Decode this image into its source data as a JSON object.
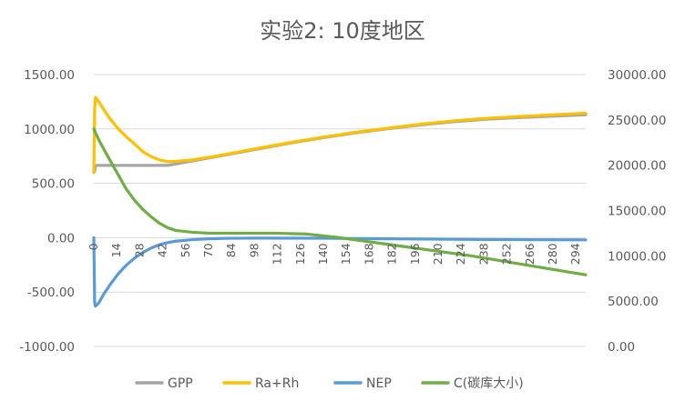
{
  "chart_data": {
    "type": "line",
    "title": "实验2: 10度地区",
    "xlabel": "",
    "ylabel": "",
    "x_ticks": [
      "0",
      "14",
      "28",
      "42",
      "56",
      "70",
      "84",
      "98",
      "112",
      "126",
      "140",
      "154",
      "168",
      "182",
      "196",
      "210",
      "224",
      "238",
      "252",
      "266",
      "280",
      "294"
    ],
    "xlim": [
      0,
      300
    ],
    "ylim_left": [
      -1000,
      1500
    ],
    "ylim_right": [
      0,
      30000
    ],
    "y_ticks_left": [
      "1500.00",
      "1000.00",
      "500.00",
      "0.00",
      "-500.00",
      "-1000.00"
    ],
    "y_ticks_right": [
      "30000.00",
      "25000.00",
      "20000.00",
      "15000.00",
      "10000.00",
      "5000.00",
      "0.00"
    ],
    "grid": "horizontal",
    "legend_position": "bottom",
    "series": [
      {
        "name": "GPP",
        "axis": "left",
        "color": "#a5a5a5",
        "points": [
          [
            0,
            600
          ],
          [
            0.5,
            610
          ],
          [
            1,
            665
          ],
          [
            10,
            665
          ],
          [
            20,
            665
          ],
          [
            30,
            665
          ],
          [
            45,
            665
          ],
          [
            60,
            705
          ],
          [
            80,
            760
          ],
          [
            100,
            815
          ],
          [
            120,
            870
          ],
          [
            140,
            920
          ],
          [
            160,
            965
          ],
          [
            180,
            1003
          ],
          [
            200,
            1038
          ],
          [
            220,
            1067
          ],
          [
            240,
            1090
          ],
          [
            260,
            1105
          ],
          [
            280,
            1117
          ],
          [
            300,
            1130
          ]
        ]
      },
      {
        "name": "Ra+Rh",
        "axis": "left",
        "color": "#ffc000",
        "points": [
          [
            0,
            600
          ],
          [
            0.5,
            1180
          ],
          [
            1,
            1290
          ],
          [
            3,
            1250
          ],
          [
            6,
            1180
          ],
          [
            10,
            1090
          ],
          [
            15,
            1000
          ],
          [
            20,
            925
          ],
          [
            25,
            860
          ],
          [
            30,
            790
          ],
          [
            35,
            745
          ],
          [
            40,
            715
          ],
          [
            45,
            700
          ],
          [
            50,
            702
          ],
          [
            60,
            715
          ],
          [
            70,
            740
          ],
          [
            80,
            765
          ],
          [
            100,
            822
          ],
          [
            120,
            875
          ],
          [
            140,
            925
          ],
          [
            160,
            970
          ],
          [
            180,
            1008
          ],
          [
            200,
            1045
          ],
          [
            220,
            1075
          ],
          [
            240,
            1098
          ],
          [
            260,
            1115
          ],
          [
            280,
            1130
          ],
          [
            300,
            1145
          ]
        ]
      },
      {
        "name": "NEP",
        "axis": "left",
        "color": "#5b9bd5",
        "points": [
          [
            0,
            0
          ],
          [
            0.5,
            -600
          ],
          [
            1,
            -630
          ],
          [
            3,
            -600
          ],
          [
            6,
            -520
          ],
          [
            10,
            -430
          ],
          [
            15,
            -330
          ],
          [
            20,
            -250
          ],
          [
            25,
            -185
          ],
          [
            30,
            -135
          ],
          [
            35,
            -95
          ],
          [
            40,
            -65
          ],
          [
            45,
            -45
          ],
          [
            50,
            -32
          ],
          [
            60,
            -18
          ],
          [
            70,
            -10
          ],
          [
            80,
            -6
          ],
          [
            100,
            -4
          ],
          [
            140,
            -5
          ],
          [
            180,
            -10
          ],
          [
            220,
            -15
          ],
          [
            260,
            -18
          ],
          [
            300,
            -20
          ]
        ]
      },
      {
        "name": "C(碳库大小)",
        "axis": "right",
        "color": "#70ad47",
        "points": [
          [
            0,
            24000
          ],
          [
            3,
            22800
          ],
          [
            6,
            21800
          ],
          [
            10,
            20500
          ],
          [
            15,
            18900
          ],
          [
            20,
            17300
          ],
          [
            25,
            16100
          ],
          [
            30,
            15100
          ],
          [
            35,
            14300
          ],
          [
            40,
            13600
          ],
          [
            45,
            13100
          ],
          [
            50,
            12800
          ],
          [
            60,
            12600
          ],
          [
            70,
            12500
          ],
          [
            90,
            12500
          ],
          [
            110,
            12500
          ],
          [
            130,
            12400
          ],
          [
            150,
            12000
          ],
          [
            170,
            11500
          ],
          [
            190,
            11000
          ],
          [
            210,
            10500
          ],
          [
            230,
            10000
          ],
          [
            250,
            9400
          ],
          [
            270,
            8800
          ],
          [
            290,
            8200
          ],
          [
            300,
            7900
          ]
        ]
      }
    ]
  }
}
